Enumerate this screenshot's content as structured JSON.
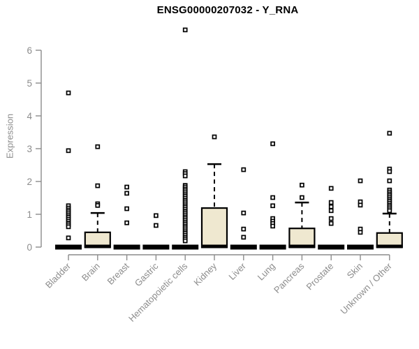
{
  "chart_data": {
    "type": "boxplot",
    "title": "ENSG00000207032 - Y_RNA",
    "ylabel": "Expression",
    "xlabel": "",
    "ylim": [
      0,
      6
    ],
    "yticks": [
      0,
      1,
      2,
      3,
      4,
      5,
      6
    ],
    "grid": false,
    "legend": "none",
    "box_fill": "#efe8d0",
    "box_stroke": "#000000",
    "axis_color": "#8c8c8c",
    "categories": [
      "Bladder",
      "Brain",
      "Breast",
      "Gastric",
      "Hematopoietic cells",
      "Kidney",
      "Liver",
      "Lung",
      "Pancreas",
      "Prostate",
      "Skin",
      "Unknown / Other"
    ],
    "boxes": [
      {
        "category": "Bladder",
        "q1": 0,
        "median": 0,
        "q3": 0,
        "whisker_low": 0,
        "whisker_high": 0,
        "outliers": [
          4.7,
          2.94,
          1.26,
          1.19,
          1.13,
          1.08,
          1.02,
          0.96,
          0.91,
          0.85,
          0.79,
          0.73,
          0.68,
          0.62,
          0.28
        ]
      },
      {
        "category": "Brain",
        "q1": 0,
        "median": 0,
        "q3": 0.45,
        "whisker_low": 0,
        "whisker_high": 1.04,
        "outliers": [
          3.06,
          1.87,
          1.32,
          1.27
        ]
      },
      {
        "category": "Breast",
        "q1": 0,
        "median": 0,
        "q3": 0,
        "whisker_low": 0,
        "whisker_high": 0,
        "outliers": [
          1.83,
          1.64,
          1.17,
          0.74
        ]
      },
      {
        "category": "Gastric",
        "q1": 0,
        "median": 0,
        "q3": 0,
        "whisker_low": 0,
        "whisker_high": 0,
        "outliers": [
          0.96,
          0.66
        ]
      },
      {
        "category": "Hematopoietic cells",
        "q1": 0,
        "median": 0,
        "q3": 0,
        "whisker_low": 0,
        "whisker_high": 0,
        "outliers": [
          6.62,
          2.3,
          2.24,
          2.17,
          1.88,
          1.83,
          1.77,
          1.72,
          1.66,
          1.6,
          1.55,
          1.49,
          1.43,
          1.38,
          1.32,
          1.26,
          1.21,
          1.15,
          1.09,
          1.04,
          0.98,
          0.92,
          0.87,
          0.81,
          0.75,
          0.7,
          0.64,
          0.59,
          0.53,
          0.47,
          0.42,
          0.36,
          0.3,
          0.25,
          0.19
        ]
      },
      {
        "category": "Kidney",
        "q1": 0,
        "median": 0,
        "q3": 1.19,
        "whisker_low": 0,
        "whisker_high": 2.53,
        "outliers": [
          3.36
        ]
      },
      {
        "category": "Liver",
        "q1": 0,
        "median": 0,
        "q3": 0,
        "whisker_low": 0,
        "whisker_high": 0,
        "outliers": [
          2.36,
          1.04,
          0.55,
          0.3
        ]
      },
      {
        "category": "Lung",
        "q1": 0,
        "median": 0,
        "q3": 0,
        "whisker_low": 0,
        "whisker_high": 0,
        "outliers": [
          3.15,
          1.51,
          1.26,
          0.87,
          0.79,
          0.72,
          0.64
        ]
      },
      {
        "category": "Pancreas",
        "q1": 0,
        "median": 0,
        "q3": 0.57,
        "whisker_low": 0,
        "whisker_high": 1.36,
        "outliers": [
          1.89,
          1.51
        ]
      },
      {
        "category": "Prostate",
        "q1": 0,
        "median": 0,
        "q3": 0,
        "whisker_low": 0,
        "whisker_high": 0,
        "outliers": [
          1.79,
          1.36,
          1.23,
          1.11,
          0.87,
          0.72
        ]
      },
      {
        "category": "Skin",
        "q1": 0,
        "median": 0,
        "q3": 0,
        "whisker_low": 0,
        "whisker_high": 0,
        "outliers": [
          2.02,
          1.38,
          1.28,
          0.55,
          0.45
        ]
      },
      {
        "category": "Unknown / Other",
        "q1": 0,
        "median": 0,
        "q3": 0.43,
        "whisker_low": 0,
        "whisker_high": 1.02,
        "outliers": [
          3.47,
          2.38,
          2.3,
          2.02,
          1.74,
          1.68,
          1.62,
          1.57,
          1.51,
          1.45,
          1.4,
          1.34,
          1.28,
          1.23,
          1.17,
          1.11
        ]
      }
    ]
  }
}
